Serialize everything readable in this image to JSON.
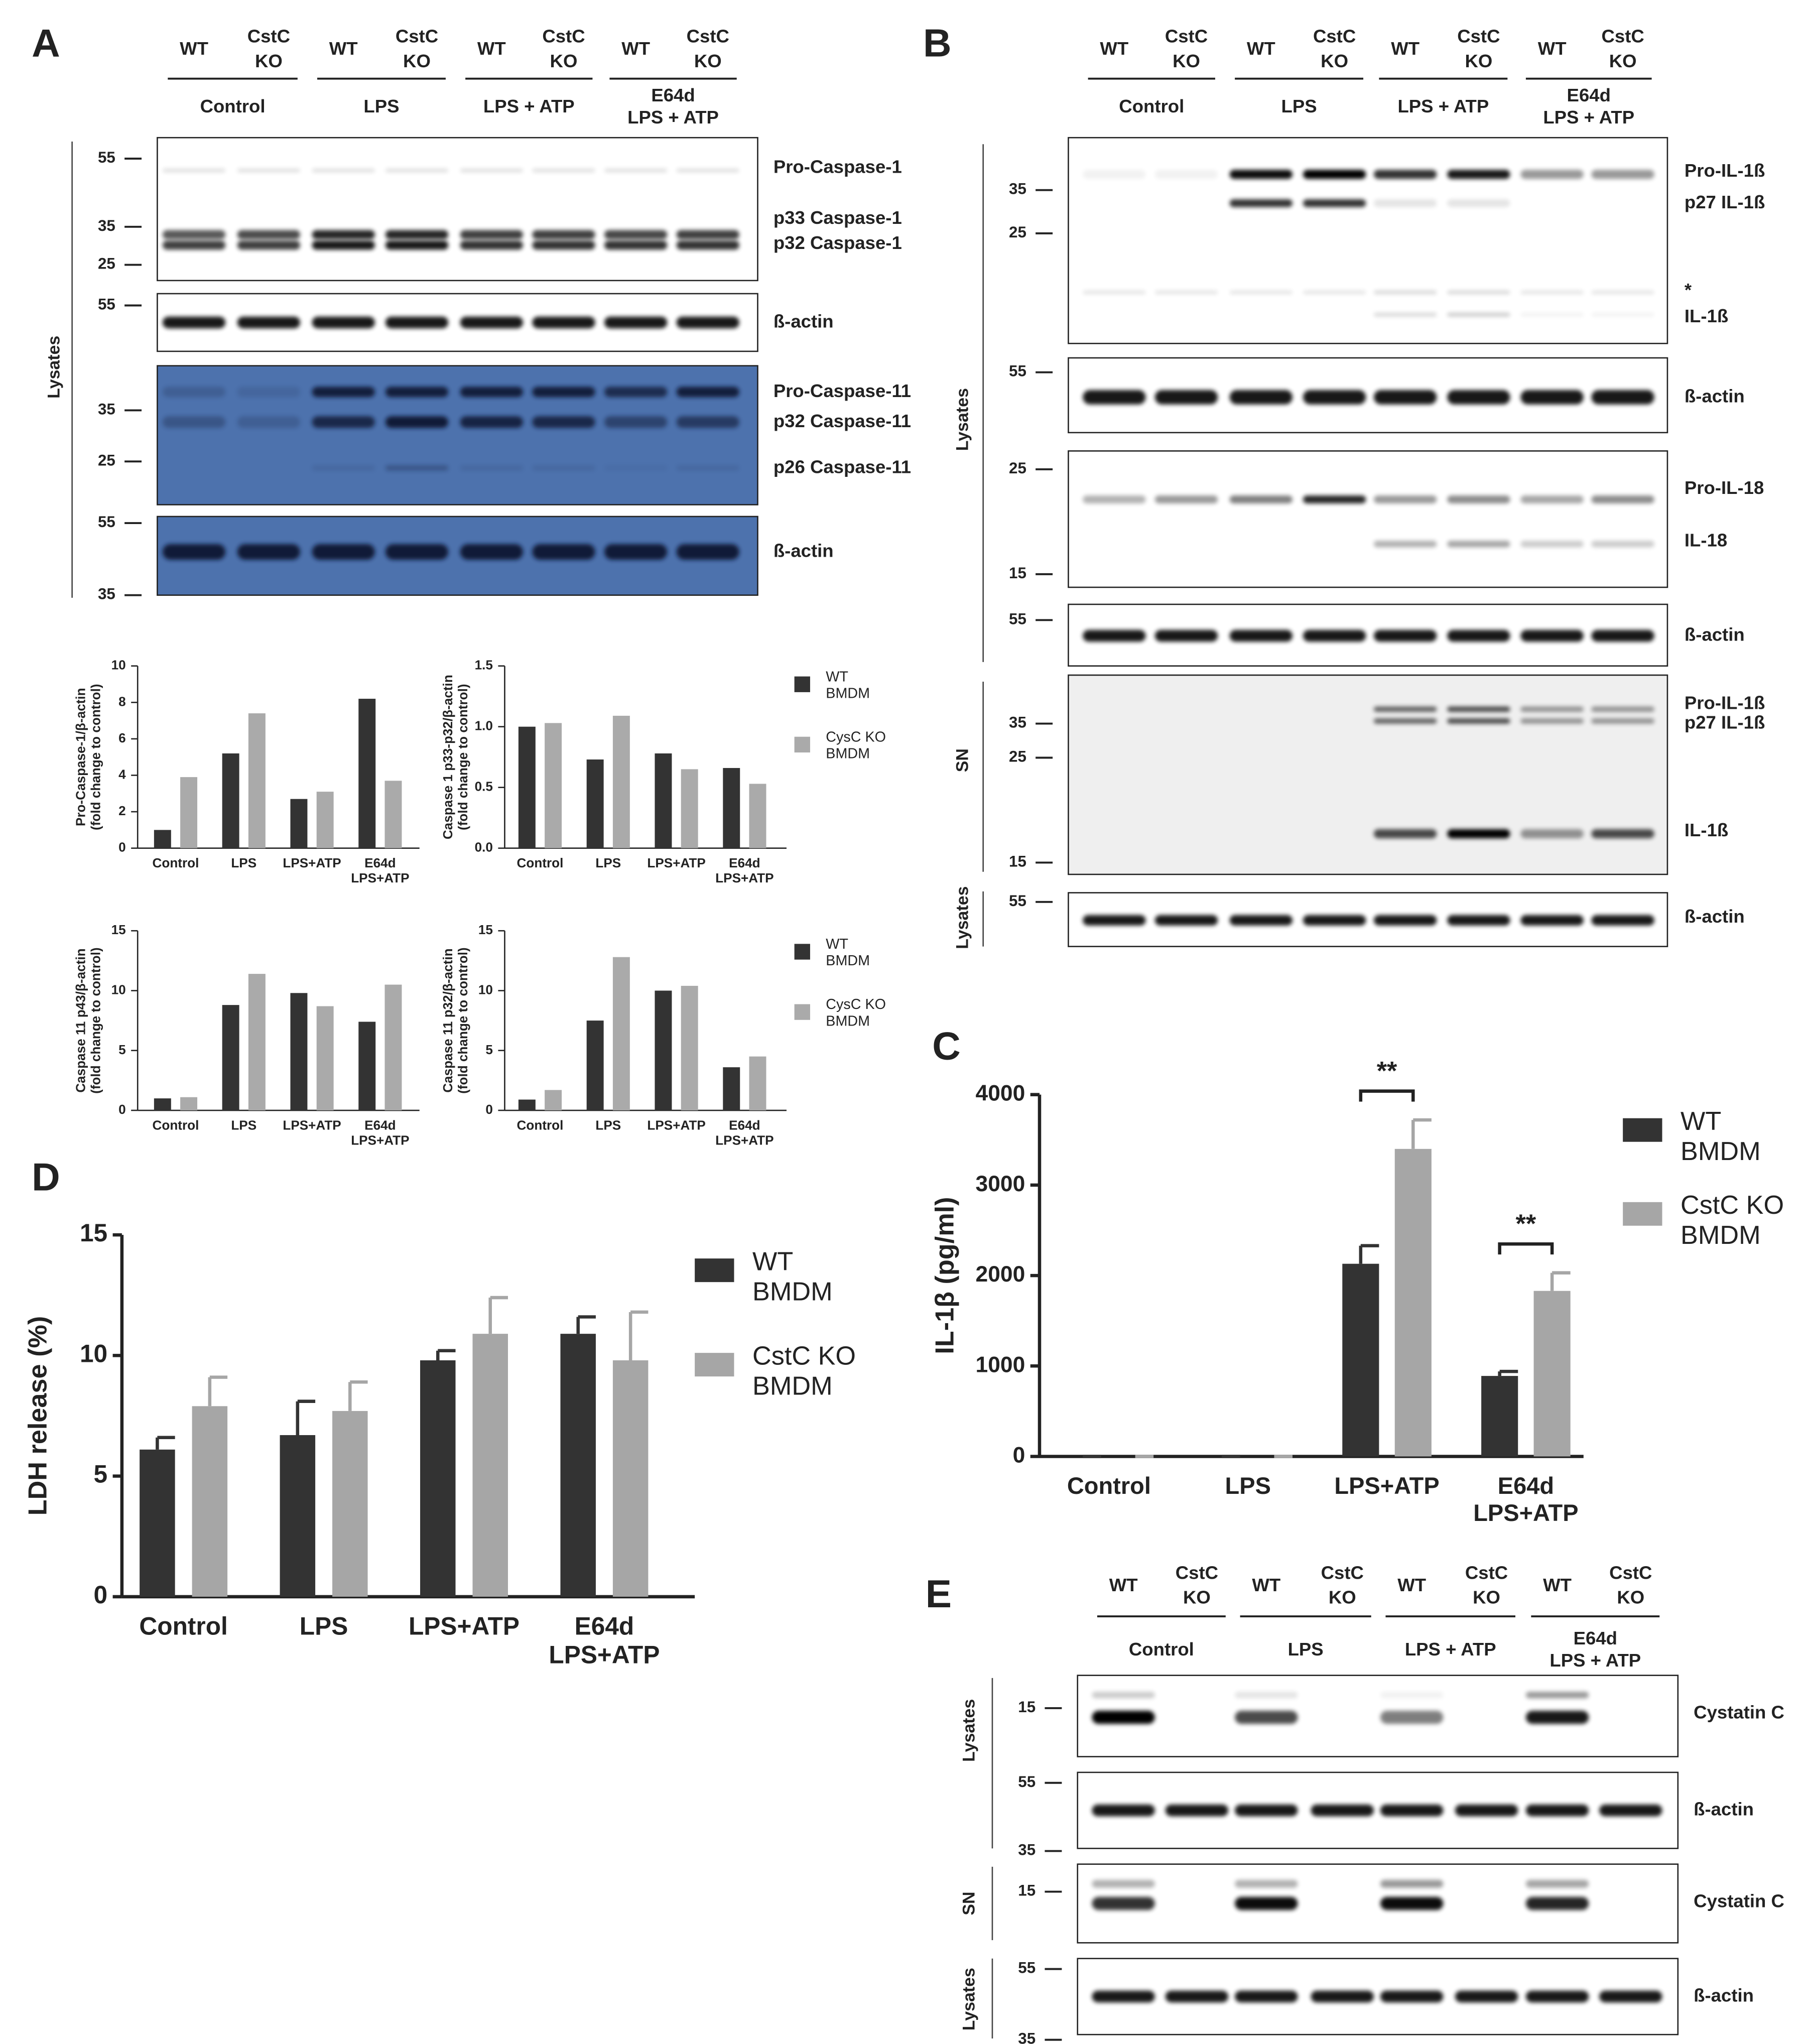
{
  "panel_letters": [
    "A",
    "B",
    "C",
    "D",
    "E"
  ],
  "lane_labels": [
    "WT",
    "CstC\nKO"
  ],
  "groups": [
    "Control",
    "LPS",
    "LPS + ATP",
    "E64d\nLPS + ATP"
  ],
  "fraction_labels": [
    "Lysates",
    "SN"
  ],
  "blots": {
    "A": [
      {
        "markers": [
          55,
          35,
          25
        ],
        "labels": [
          "Pro-Caspase-1",
          "p33 Caspase-1",
          "p32 Caspase-1"
        ]
      },
      {
        "markers": [
          55
        ],
        "labels": [
          "ß-actin"
        ]
      },
      {
        "markers": [
          35,
          25
        ],
        "labels": [
          "Pro-Caspase-11",
          "p32 Caspase-11",
          "p26 Caspase-11"
        ]
      },
      {
        "markers": [
          55,
          35
        ],
        "labels": [
          "ß-actin"
        ]
      }
    ],
    "B": [
      {
        "markers": [
          35,
          25
        ],
        "labels": [
          "Pro-IL-1ß",
          "p27 IL-1ß",
          "*",
          "IL-1ß"
        ]
      },
      {
        "markers": [
          55
        ],
        "labels": [
          "ß-actin"
        ]
      },
      {
        "markers": [
          25,
          15
        ],
        "labels": [
          "Pro-IL-18",
          "IL-18"
        ]
      },
      {
        "markers": [
          55
        ],
        "labels": [
          "ß-actin"
        ]
      },
      {
        "markers": [
          35,
          25,
          15
        ],
        "labels": [
          "Pro-IL-1ß",
          "p27 IL-1ß",
          "IL-1ß"
        ]
      },
      {
        "markers": [
          55
        ],
        "labels": [
          "ß-actin"
        ]
      }
    ],
    "E": [
      {
        "markers": [
          15
        ],
        "labels": [
          "Cystatin C"
        ]
      },
      {
        "markers": [
          55,
          35
        ],
        "labels": [
          "ß-actin"
        ]
      },
      {
        "markers": [
          15
        ],
        "labels": [
          "Cystatin C"
        ]
      },
      {
        "markers": [
          55,
          35
        ],
        "labels": [
          "ß-actin"
        ]
      }
    ]
  },
  "chart_data": [
    {
      "type": "bar",
      "y_label": "Pro-Caspase-1/β-actin\n(fold change to control)",
      "categories": [
        "Control",
        "LPS",
        "LPS+ATP",
        "E64d\nLPS+ATP"
      ],
      "series": [
        {
          "color": "#333333",
          "values": [
            1.0,
            5.2,
            2.7,
            8.2
          ]
        },
        {
          "color": "#aaaaaa",
          "values": [
            3.9,
            7.4,
            3.1,
            3.7
          ]
        }
      ],
      "ylim": [
        0,
        10
      ],
      "yticks": [
        0,
        2,
        4,
        6,
        8,
        10
      ]
    },
    {
      "type": "bar",
      "y_label": "Caspase 1 p33-p32/β-actin\n(fold change to control)",
      "categories": [
        "Control",
        "LPS",
        "LPS+ATP",
        "E64d\nLPS+ATP"
      ],
      "series": [
        {
          "name": "WT\nBMDM",
          "color": "#333333",
          "values": [
            1.0,
            0.73,
            0.78,
            0.66
          ]
        },
        {
          "name": "CysC KO\nBMDM",
          "color": "#aaaaaa",
          "values": [
            1.03,
            1.09,
            0.65,
            0.53
          ]
        }
      ],
      "ylim": [
        0,
        1.5
      ],
      "yticks": [
        {
          "value": 0,
          "label": "0.0"
        },
        0.5,
        {
          "value": 1,
          "label": "1.0"
        },
        1.5
      ]
    },
    {
      "type": "bar",
      "y_label": "Caspase 11 p43/β-actin\n(fold change to control)",
      "categories": [
        "Control",
        "LPS",
        "LPS+ATP",
        "E64d\nLPS+ATP"
      ],
      "series": [
        {
          "color": "#333333",
          "values": [
            1.0,
            8.8,
            9.8,
            7.4
          ]
        },
        {
          "color": "#aaaaaa",
          "values": [
            1.1,
            11.4,
            8.7,
            10.5
          ]
        }
      ],
      "ylim": [
        0,
        15
      ],
      "yticks": [
        0,
        5,
        10,
        15
      ]
    },
    {
      "type": "bar",
      "y_label": "Caspase 11 p32/β-actin\n(fold change to control)",
      "categories": [
        "Control",
        "LPS",
        "LPS+ATP",
        "E64d\nLPS+ATP"
      ],
      "series": [
        {
          "name": "WT\nBMDM",
          "color": "#333333",
          "values": [
            0.9,
            7.5,
            10.0,
            3.6
          ]
        },
        {
          "name": "CysC KO\nBMDM",
          "color": "#aaaaaa",
          "values": [
            1.7,
            12.8,
            10.4,
            4.5
          ]
        }
      ],
      "ylim": [
        0,
        15
      ],
      "yticks": [
        0,
        5,
        10,
        15
      ]
    },
    {
      "type": "bar",
      "y_label": "IL-1β (pg/ml)",
      "categories": [
        "Control",
        "LPS",
        "LPS+ATP",
        "E64d\nLPS+ATP"
      ],
      "series": [
        {
          "name": "WT\nBMDM",
          "color": "#333333",
          "values": [
            0,
            0,
            2130,
            890
          ],
          "errors": [
            0,
            0,
            200,
            50
          ]
        },
        {
          "name": "CstC KO\nBMDM",
          "color": "#a6a6a6",
          "values": [
            0,
            0,
            3400,
            1830
          ],
          "errors": [
            0,
            0,
            320,
            200
          ]
        }
      ],
      "annotations": [
        "**",
        "**"
      ],
      "ylim": [
        0,
        4000
      ],
      "yticks": [
        0,
        1000,
        2000,
        3000,
        4000
      ]
    },
    {
      "type": "bar",
      "y_label": "LDH release (%)",
      "categories": [
        "Control",
        "LPS",
        "LPS+ATP",
        "E64d\nLPS+ATP"
      ],
      "series": [
        {
          "name": "WT\nBMDM",
          "color": "#333333",
          "values": [
            6.1,
            6.7,
            9.8,
            10.9
          ],
          "errors": [
            0.5,
            1.4,
            0.4,
            0.7
          ]
        },
        {
          "name": "CstC KO\nBMDM",
          "color": "#a6a6a6",
          "values": [
            7.9,
            7.7,
            10.9,
            9.8
          ],
          "errors": [
            1.2,
            1.2,
            1.5,
            2.0
          ]
        }
      ],
      "ylim": [
        0,
        15
      ],
      "yticks": [
        0,
        5,
        10,
        15
      ]
    }
  ]
}
